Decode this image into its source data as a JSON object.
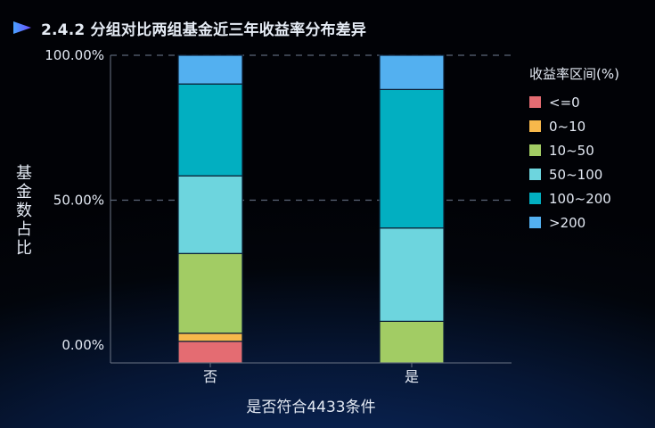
{
  "title": "2.4.2 分组对比两组基金近三年收益率分布差异",
  "chart_data": {
    "type": "bar",
    "stacked": true,
    "xlabel": "是否符合4433条件",
    "ylabel": "基金数占比",
    "categories": [
      "否",
      "是"
    ],
    "yticks": [
      "0.00%",
      "50.00%",
      "100.00%"
    ],
    "ylim": [
      0,
      1
    ],
    "grid": "dashed horizontal",
    "legend_title": "收益率区间(%)",
    "legend_position": "right",
    "series": [
      {
        "name": "<=0",
        "color": "#e46c72",
        "values": [
          0.013,
          0
        ]
      },
      {
        "name": "0~10",
        "color": "#f7b84b",
        "values": [
          0.028,
          0
        ]
      },
      {
        "name": "10~50",
        "color": "#a2cc64",
        "values": [
          0.275,
          0.082
        ]
      },
      {
        "name": "50~100",
        "color": "#6dd5de",
        "values": [
          0.268,
          0.322
        ]
      },
      {
        "name": "100~200",
        "color": "#02afc1",
        "values": [
          0.317,
          0.478
        ]
      },
      {
        "name": ">200",
        "color": "#53b0f0",
        "values": [
          0.099,
          0.118
        ]
      }
    ]
  }
}
